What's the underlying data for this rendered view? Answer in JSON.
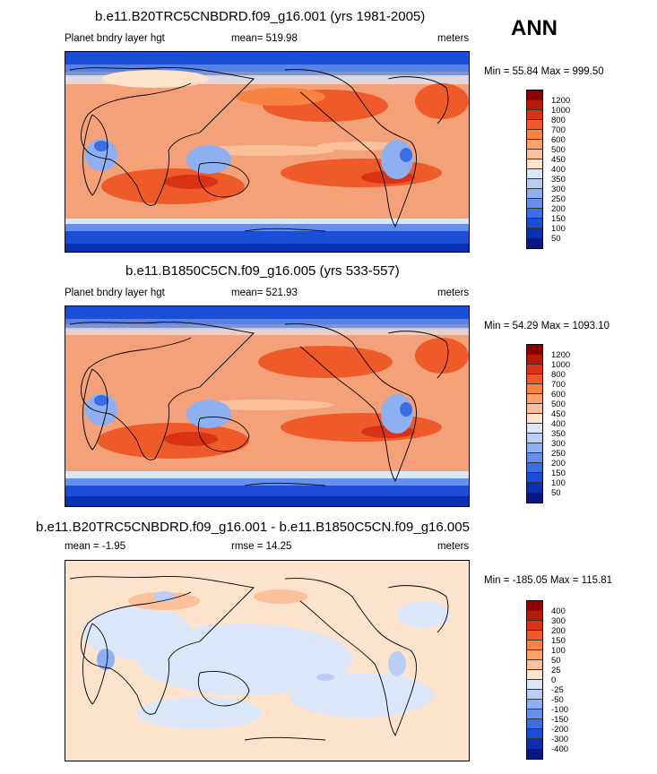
{
  "season": "ANN",
  "panels": [
    {
      "title": "b.e11.B20TRC5CNBDRD.f09_g16.001 (yrs 1981-2005)",
      "left_label": "Planet bndry layer hgt",
      "center_label": "mean= 519.98",
      "units": "meters",
      "minmax": "Min =  55.84 Max = 999.50",
      "colorbar": {
        "labels": [
          "1200",
          "1000",
          "800",
          "700",
          "600",
          "500",
          "450",
          "400",
          "350",
          "300",
          "250",
          "200",
          "150",
          "100",
          "50"
        ],
        "colors": [
          "#8b0000",
          "#b51a06",
          "#d93214",
          "#ee5a2a",
          "#f8823f",
          "#fca06a",
          "#fcc09a",
          "#fde2cc",
          "#dbe6f8",
          "#b9cdf5",
          "#8fb0f0",
          "#6590ea",
          "#3c6ee3",
          "#1a4ed6",
          "#0a2fb0",
          "#081a80"
        ]
      }
    },
    {
      "title": "b.e11.B1850C5CN.f09_g16.005 (yrs 533-557)",
      "left_label": "Planet bndry layer hgt",
      "center_label": "mean= 521.93",
      "units": "meters",
      "minmax": "Min =  54.29 Max = 1093.10",
      "colorbar": {
        "labels": [
          "1200",
          "1000",
          "800",
          "700",
          "600",
          "500",
          "450",
          "400",
          "350",
          "300",
          "250",
          "200",
          "150",
          "100",
          "50"
        ],
        "colors": [
          "#8b0000",
          "#b51a06",
          "#d93214",
          "#ee5a2a",
          "#f8823f",
          "#fca06a",
          "#fcc09a",
          "#fde2cc",
          "#dbe6f8",
          "#b9cdf5",
          "#8fb0f0",
          "#6590ea",
          "#3c6ee3",
          "#1a4ed6",
          "#0a2fb0",
          "#081a80"
        ]
      }
    },
    {
      "title": "b.e11.B20TRC5CNBDRD.f09_g16.001 - b.e11.B1850C5CN.f09_g16.005",
      "left_label": "mean =  -1.95",
      "center_label": "rmse =  14.25",
      "units": "meters",
      "minmax": "Min = -185.05 Max = 115.81",
      "colorbar": {
        "labels": [
          "400",
          "300",
          "200",
          "150",
          "100",
          "50",
          "25",
          "0",
          "-25",
          "-50",
          "-100",
          "-150",
          "-200",
          "-300",
          "-400"
        ],
        "colors": [
          "#8b0000",
          "#b51a06",
          "#d93214",
          "#ee5a2a",
          "#f8823f",
          "#fca06a",
          "#fcc09a",
          "#fde2cc",
          "#dbe6f8",
          "#b9cdf5",
          "#8fb0f0",
          "#6590ea",
          "#3c6ee3",
          "#1a4ed6",
          "#0a2fb0",
          "#081a80"
        ]
      }
    }
  ]
}
